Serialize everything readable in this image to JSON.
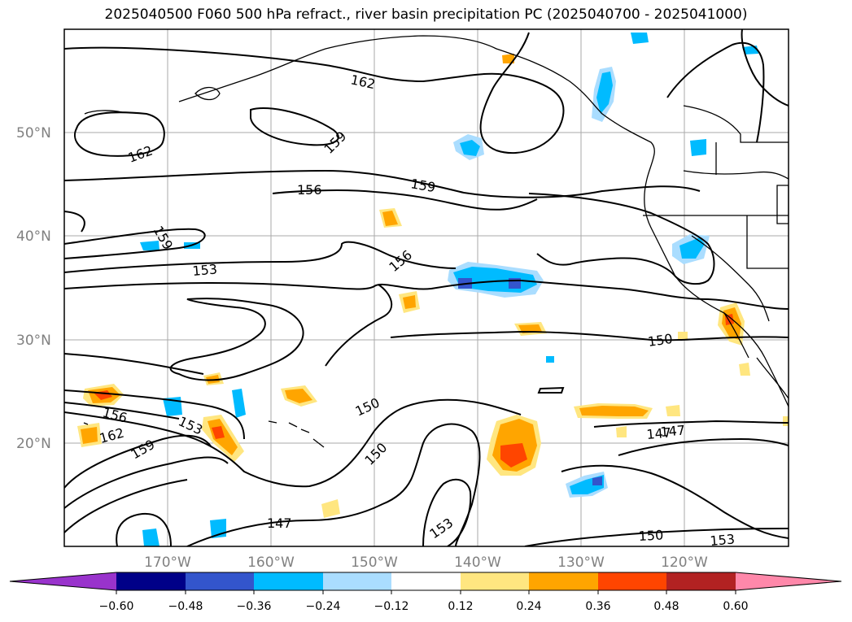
{
  "title": "2025040500 F060 500 hPa refract., river basin precipitation PC (2025040700 - 2025041000)",
  "colors": {
    "contour": "#000000",
    "grid": "#aaaaaa",
    "coast": "#000000",
    "axis_label": "#808080"
  },
  "latitude_labels": [
    "50°N",
    "40°N",
    "30°N",
    "20°N"
  ],
  "longitude_labels": [
    "170°W",
    "160°W",
    "150°W",
    "140°W",
    "130°W",
    "120°W"
  ],
  "contour_labels": [
    "162",
    "159",
    "162",
    "156",
    "159",
    "159",
    "153",
    "156",
    "150",
    "156",
    "153",
    "162",
    "159",
    "150",
    "150",
    "147",
    "153",
    "150",
    "153",
    "147",
    "147"
  ],
  "colorbar": {
    "ticks": [
      "−0.60",
      "−0.48",
      "−0.36",
      "−0.24",
      "−0.12",
      "0.12",
      "0.24",
      "0.36",
      "0.48",
      "0.60"
    ],
    "colors": [
      "#9933cc",
      "#000088",
      "#3355cc",
      "#00bbff",
      "#aaddff",
      "#ffffff",
      "#ffe680",
      "#ffa500",
      "#ff4500",
      "#b22222",
      "#ff88aa"
    ]
  }
}
